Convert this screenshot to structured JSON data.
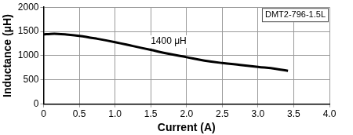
{
  "chart_data": {
    "type": "line",
    "x_label": "Current (A)",
    "y_label": "Inductance (μH)",
    "series": [
      {
        "name": "DMT2-796-1.5L",
        "color": "#000000",
        "x": [
          0,
          0.1,
          0.2,
          0.3,
          0.5,
          0.75,
          1.0,
          1.25,
          1.5,
          1.75,
          2.0,
          2.25,
          2.5,
          2.75,
          3.0,
          3.25,
          3.42
        ],
        "values": [
          1440,
          1450,
          1450,
          1440,
          1410,
          1350,
          1280,
          1200,
          1120,
          1040,
          970,
          900,
          850,
          810,
          770,
          730,
          690
        ]
      }
    ],
    "annotations": [
      {
        "text": "1400 μH",
        "x": 1.75,
        "y": 1290
      }
    ],
    "legend": "top right",
    "xlim": [
      0,
      4
    ],
    "xticks": [
      0,
      0.5,
      {
        "value": 1,
        "label": "1.0"
      },
      1.5,
      {
        "value": 2,
        "label": "2.0"
      },
      2.5,
      {
        "value": 3,
        "label": "3.0"
      },
      3.5,
      {
        "value": 4,
        "label": "4.0"
      }
    ],
    "ylim": [
      0,
      2000
    ],
    "yticks": [
      0,
      500,
      1000,
      1500,
      2000
    ],
    "grid": true
  }
}
